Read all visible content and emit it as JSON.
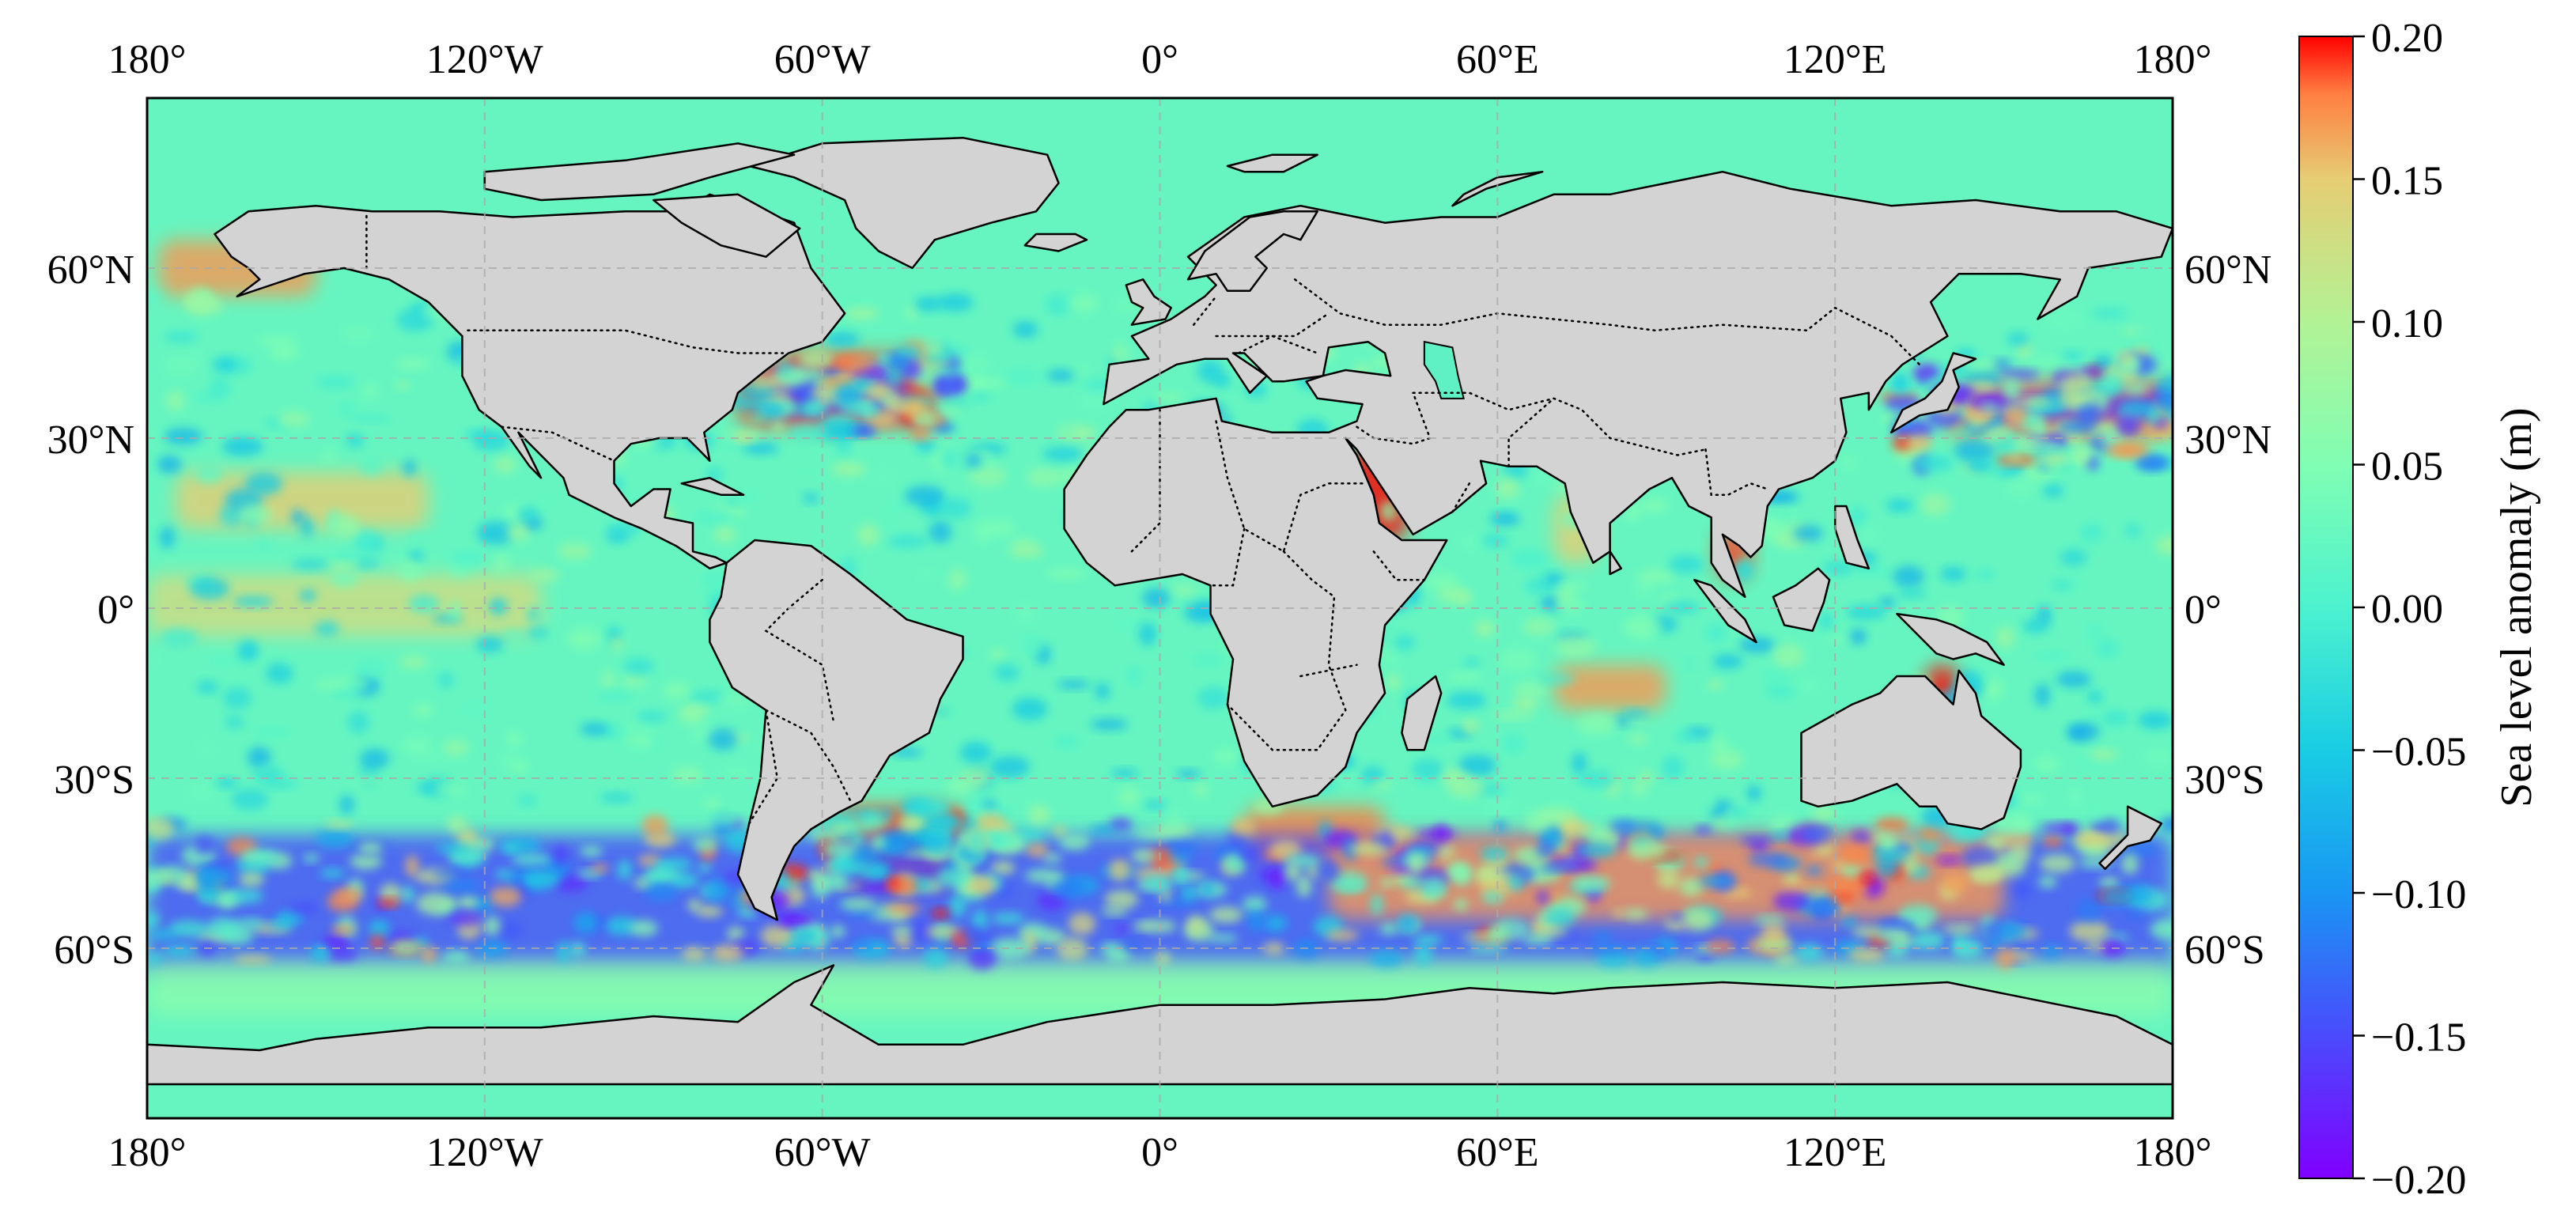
{
  "map": {
    "projection": "plate-carree",
    "central_longitude": 0,
    "extent": {
      "lon": [
        -180,
        180
      ],
      "lat": [
        -90,
        90
      ]
    },
    "gridlines": true,
    "land_color": "#d3d3d3",
    "coastline_color": "#000000",
    "borders_style": "dotted",
    "lon_ticks": [
      {
        "value": -180,
        "label": "180°"
      },
      {
        "value": -120,
        "label": "120°W"
      },
      {
        "value": -60,
        "label": "60°W"
      },
      {
        "value": 0,
        "label": "0°"
      },
      {
        "value": 60,
        "label": "60°E"
      },
      {
        "value": 120,
        "label": "120°E"
      },
      {
        "value": 180,
        "label": "180°"
      }
    ],
    "lat_ticks": [
      {
        "value": 60,
        "label": "60°N"
      },
      {
        "value": 30,
        "label": "30°N"
      },
      {
        "value": 0,
        "label": "0°"
      },
      {
        "value": -30,
        "label": "30°S"
      },
      {
        "value": -60,
        "label": "60°S"
      }
    ]
  },
  "colorbar": {
    "label": "Sea level anomaly (m)",
    "vmin": -0.2,
    "vmax": 0.2,
    "colormap": "rainbow",
    "ticks": [
      {
        "value": 0.2,
        "label": "0.20"
      },
      {
        "value": 0.15,
        "label": "0.15"
      },
      {
        "value": 0.1,
        "label": "0.10"
      },
      {
        "value": 0.05,
        "label": "0.05"
      },
      {
        "value": 0.0,
        "label": "0.00"
      },
      {
        "value": -0.05,
        "label": "−0.05"
      },
      {
        "value": -0.1,
        "label": "−0.10"
      },
      {
        "value": -0.15,
        "label": "−0.15"
      },
      {
        "value": -0.2,
        "label": "−0.20"
      }
    ]
  },
  "chart_data": {
    "type": "heatmap",
    "variable": "Sea level anomaly (m)",
    "colormap": "rainbow",
    "vmin": -0.2,
    "vmax": 0.2,
    "anomaly_regions": [
      {
        "region": "Gulf of Alaska coast",
        "lon": [
          -178,
          -150
        ],
        "lat": [
          55,
          65
        ],
        "value": 0.17
      },
      {
        "region": "Equatorial Pacific",
        "lon": [
          -180,
          -110
        ],
        "lat": [
          -5,
          6
        ],
        "value": 0.13
      },
      {
        "region": "North Pacific subtropics",
        "lon": [
          -175,
          -130
        ],
        "lat": [
          14,
          24
        ],
        "value": 0.15
      },
      {
        "region": "Gulf Stream",
        "lon": [
          -75,
          -40
        ],
        "lat": [
          32,
          45
        ],
        "value": 0.19
      },
      {
        "region": "Gulf Stream cold eddies",
        "lon": [
          -70,
          -45
        ],
        "lat": [
          34,
          42
        ],
        "value": -0.16
      },
      {
        "region": "Kuroshio Extension",
        "lon": [
          140,
          180
        ],
        "lat": [
          30,
          40
        ],
        "value": 0.18
      },
      {
        "region": "Kuroshio cold eddies",
        "lon": [
          145,
          180
        ],
        "lat": [
          33,
          38
        ],
        "value": -0.17
      },
      {
        "region": "Red Sea",
        "lon": [
          33,
          44
        ],
        "lat": [
          12,
          28
        ],
        "value": 0.2
      },
      {
        "region": "Indian west coast / Arabian Sea",
        "lon": [
          70,
          78
        ],
        "lat": [
          8,
          20
        ],
        "value": 0.15
      },
      {
        "region": "Gulf of Thailand",
        "lon": [
          99,
          105
        ],
        "lat": [
          5,
          14
        ],
        "value": 0.19
      },
      {
        "region": "Gulf of Carpentaria",
        "lon": [
          136,
          142
        ],
        "lat": [
          -18,
          -10
        ],
        "value": 0.2
      },
      {
        "region": "South Indian Ocean",
        "lon": [
          70,
          90
        ],
        "lat": [
          -18,
          -10
        ],
        "value": 0.17
      },
      {
        "region": "Brazil-Malvinas Confluence",
        "lon": [
          -58,
          -35
        ],
        "lat": [
          -50,
          -35
        ],
        "value": 0.19
      },
      {
        "region": "Agulhas Retroflection",
        "lon": [
          15,
          40
        ],
        "lat": [
          -45,
          -35
        ],
        "value": 0.18
      },
      {
        "region": "Antarctic Circumpolar Current eddies",
        "lon": [
          -180,
          180
        ],
        "lat": [
          -65,
          -40
        ],
        "value": -0.15
      },
      {
        "region": "Antarctic Circumpolar Current warm eddies",
        "lon": [
          30,
          150
        ],
        "lat": [
          -55,
          -40
        ],
        "value": 0.17
      },
      {
        "region": "Southern Ocean near Antarctica",
        "lon": [
          -180,
          180
        ],
        "lat": [
          -72,
          -62
        ],
        "value": 0.06
      },
      {
        "region": "Open ocean background",
        "lon": [
          -180,
          180
        ],
        "lat": [
          -60,
          60
        ],
        "value": 0.0
      }
    ]
  }
}
